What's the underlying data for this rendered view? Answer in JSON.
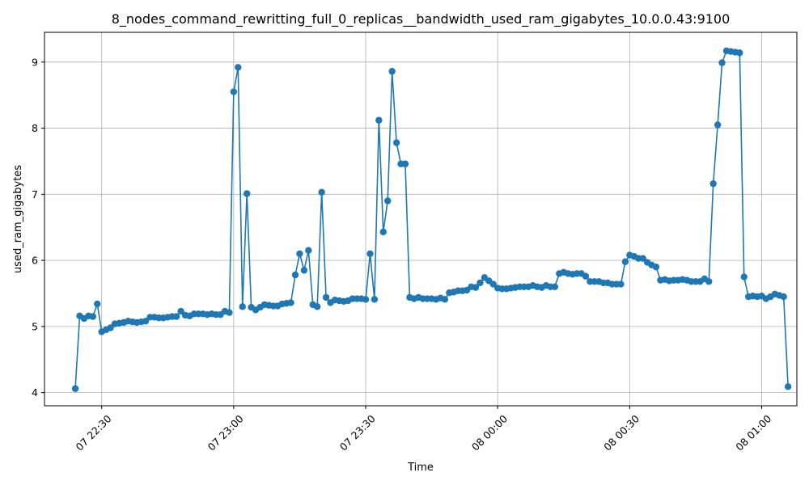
{
  "chart_data": {
    "type": "line",
    "title": "8_nodes_command_rewritting_full_0_replicas__bandwidth_used_ram_gigabytes_10.0.0.43:9100",
    "xlabel": "Time",
    "ylabel": "used_ram_gigabytes",
    "ylim": [
      3.8,
      9.45
    ],
    "xlim": [
      "07 22:17",
      "08 01:08"
    ],
    "grid": true,
    "color": "#1f77b4",
    "x_ticks": [
      {
        "t": "07 22:30",
        "label": "07 22:30"
      },
      {
        "t": "07 23:00",
        "label": "07 23:00"
      },
      {
        "t": "07 23:30",
        "label": "07 23:30"
      },
      {
        "t": "08 00:00",
        "label": "08 00:00"
      },
      {
        "t": "08 00:30",
        "label": "08 00:30"
      },
      {
        "t": "08 01:00",
        "label": "08 01:00"
      }
    ],
    "y_ticks": [
      4,
      5,
      6,
      7,
      8,
      9
    ],
    "x": [
      "07 22:24",
      "07 22:25",
      "07 22:26",
      "07 22:27",
      "07 22:28",
      "07 22:29",
      "07 22:30",
      "07 22:31",
      "07 22:32",
      "07 22:33",
      "07 22:34",
      "07 22:35",
      "07 22:36",
      "07 22:37",
      "07 22:38",
      "07 22:39",
      "07 22:40",
      "07 22:41",
      "07 22:42",
      "07 22:43",
      "07 22:44",
      "07 22:45",
      "07 22:46",
      "07 22:47",
      "07 22:48",
      "07 22:49",
      "07 22:50",
      "07 22:51",
      "07 22:52",
      "07 22:53",
      "07 22:54",
      "07 22:55",
      "07 22:56",
      "07 22:57",
      "07 22:58",
      "07 22:59",
      "07 23:00",
      "07 23:01",
      "07 23:02",
      "07 23:03",
      "07 23:04",
      "07 23:05",
      "07 23:06",
      "07 23:07",
      "07 23:08",
      "07 23:09",
      "07 23:10",
      "07 23:11",
      "07 23:12",
      "07 23:13",
      "07 23:14",
      "07 23:15",
      "07 23:16",
      "07 23:17",
      "07 23:18",
      "07 23:19",
      "07 23:20",
      "07 23:21",
      "07 23:22",
      "07 23:23",
      "07 23:24",
      "07 23:25",
      "07 23:26",
      "07 23:27",
      "07 23:28",
      "07 23:29",
      "07 23:30",
      "07 23:31",
      "07 23:32",
      "07 23:33",
      "07 23:34",
      "07 23:35",
      "07 23:36",
      "07 23:37",
      "07 23:38",
      "07 23:39",
      "07 23:40",
      "07 23:41",
      "07 23:42",
      "07 23:43",
      "07 23:44",
      "07 23:45",
      "07 23:46",
      "07 23:47",
      "07 23:48",
      "07 23:49",
      "07 23:50",
      "07 23:51",
      "07 23:52",
      "07 23:53",
      "07 23:54",
      "07 23:55",
      "07 23:56",
      "07 23:57",
      "07 23:58",
      "07 23:59",
      "08 00:00",
      "08 00:01",
      "08 00:02",
      "08 00:03",
      "08 00:04",
      "08 00:05",
      "08 00:06",
      "08 00:07",
      "08 00:08",
      "08 00:09",
      "08 00:10",
      "08 00:11",
      "08 00:12",
      "08 00:13",
      "08 00:14",
      "08 00:15",
      "08 00:16",
      "08 00:17",
      "08 00:18",
      "08 00:19",
      "08 00:20",
      "08 00:21",
      "08 00:22",
      "08 00:23",
      "08 00:24",
      "08 00:25",
      "08 00:26",
      "08 00:27",
      "08 00:28",
      "08 00:29",
      "08 00:30",
      "08 00:31",
      "08 00:32",
      "08 00:33",
      "08 00:34",
      "08 00:35",
      "08 00:36",
      "08 00:37",
      "08 00:38",
      "08 00:39",
      "08 00:40",
      "08 00:41",
      "08 00:42",
      "08 00:43",
      "08 00:44",
      "08 00:45",
      "08 00:46",
      "08 00:47",
      "08 00:48",
      "08 00:49",
      "08 00:50",
      "08 00:51",
      "08 00:52",
      "08 00:53",
      "08 00:54",
      "08 00:55",
      "08 00:56",
      "08 00:57",
      "08 00:58",
      "08 00:59",
      "08 01:00",
      "08 01:01",
      "08 01:02",
      "08 01:03",
      "08 01:04",
      "08 01:05",
      "08 01:06"
    ],
    "y": [
      4.06,
      5.16,
      5.12,
      5.16,
      5.15,
      5.34,
      4.92,
      4.95,
      4.98,
      5.04,
      5.05,
      5.06,
      5.08,
      5.07,
      5.06,
      5.07,
      5.08,
      5.14,
      5.14,
      5.13,
      5.13,
      5.14,
      5.15,
      5.15,
      5.23,
      5.17,
      5.16,
      5.19,
      5.19,
      5.19,
      5.18,
      5.19,
      5.18,
      5.18,
      5.23,
      5.21,
      8.55,
      8.92,
      5.3,
      7.01,
      5.29,
      5.25,
      5.29,
      5.33,
      5.32,
      5.31,
      5.31,
      5.34,
      5.35,
      5.36,
      5.78,
      6.1,
      5.85,
      6.15,
      5.33,
      5.3,
      7.03,
      5.44,
      5.36,
      5.4,
      5.39,
      5.38,
      5.39,
      5.42,
      5.42,
      5.42,
      5.41,
      6.1,
      5.41,
      8.12,
      6.43,
      6.9,
      8.86,
      7.78,
      7.46,
      7.46,
      5.44,
      5.42,
      5.44,
      5.42,
      5.42,
      5.42,
      5.41,
      5.43,
      5.41,
      5.51,
      5.52,
      5.54,
      5.54,
      5.55,
      5.6,
      5.59,
      5.66,
      5.74,
      5.69,
      5.64,
      5.58,
      5.57,
      5.57,
      5.58,
      5.59,
      5.6,
      5.6,
      5.6,
      5.62,
      5.6,
      5.59,
      5.62,
      5.6,
      5.6,
      5.8,
      5.82,
      5.8,
      5.79,
      5.8,
      5.8,
      5.76,
      5.68,
      5.68,
      5.68,
      5.66,
      5.66,
      5.64,
      5.64,
      5.64,
      5.98,
      6.08,
      6.06,
      6.03,
      6.03,
      5.97,
      5.93,
      5.9,
      5.7,
      5.71,
      5.69,
      5.7,
      5.7,
      5.71,
      5.7,
      5.68,
      5.68,
      5.68,
      5.72,
      5.68,
      7.16,
      8.05,
      8.99,
      9.17,
      9.16,
      9.15,
      9.14,
      5.75,
      5.45,
      5.46,
      5.45,
      5.46,
      5.42,
      5.45,
      5.49,
      5.47,
      5.45,
      4.09
    ]
  }
}
